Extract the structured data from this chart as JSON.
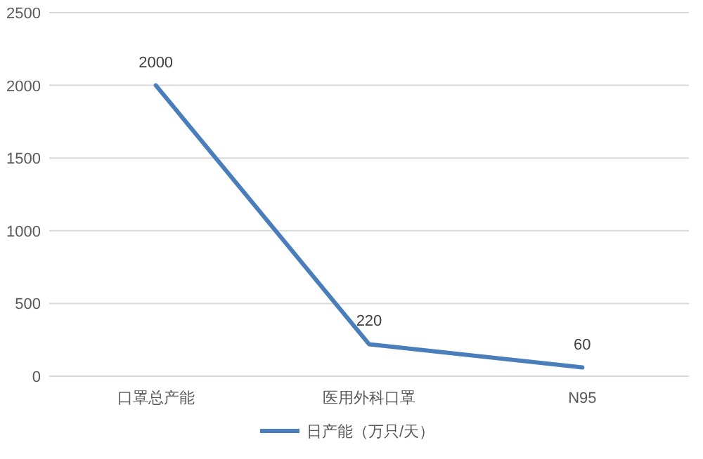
{
  "chart_data": {
    "type": "line",
    "categories": [
      "口罩总产能",
      "医用外科口罩",
      "N95"
    ],
    "series": [
      {
        "name": "日产能（万只/天）",
        "color": "#4a7ebb",
        "values": [
          2000,
          220,
          60
        ]
      }
    ],
    "ylim": [
      0,
      2500
    ],
    "yticks": [
      0,
      500,
      1000,
      1500,
      2000,
      2500
    ],
    "grid": "y",
    "legend": "bottom",
    "data_labels": true,
    "marker": "none"
  }
}
